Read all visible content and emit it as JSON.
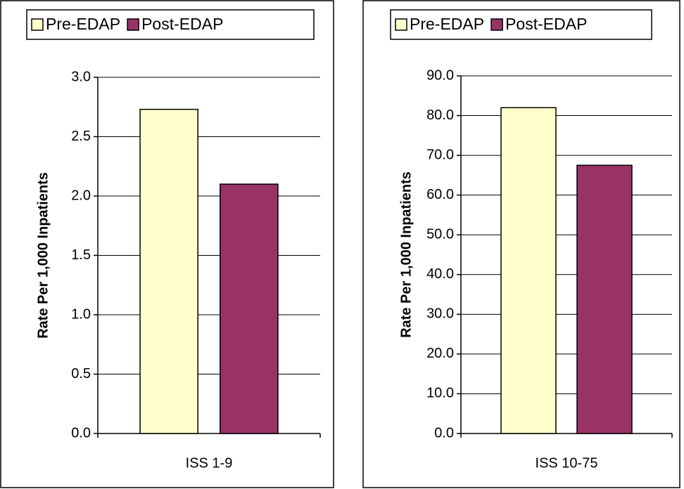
{
  "chart_data": [
    {
      "type": "bar",
      "y_label": "Rate Per 1,000 Inpatients",
      "categories": [
        "ISS 1-9"
      ],
      "series": [
        {
          "name": "Pre-EDAP",
          "color": "#ffffcc",
          "values": [
            2.73
          ]
        },
        {
          "name": "Post-EDAP",
          "color": "#993366",
          "values": [
            2.1
          ]
        }
      ],
      "ylim": [
        0,
        3
      ],
      "yticks": [
        {
          "value": 0,
          "label": "0.0"
        },
        {
          "value": 0.5,
          "label": "0.5"
        },
        {
          "value": 1,
          "label": "1.0"
        },
        {
          "value": 1.5,
          "label": "1.5"
        },
        {
          "value": 2,
          "label": "2.0"
        },
        {
          "value": 2.5,
          "label": "2.5"
        },
        {
          "value": 3,
          "label": "3.0"
        }
      ],
      "grid": true
    },
    {
      "type": "bar",
      "y_label": "Rate Per 1,000 Inpatients",
      "categories": [
        "ISS 10-75"
      ],
      "series": [
        {
          "name": "Pre-EDAP",
          "color": "#ffffcc",
          "values": [
            82.0
          ]
        },
        {
          "name": "Post-EDAP",
          "color": "#993366",
          "values": [
            67.5
          ]
        }
      ],
      "ylim": [
        0,
        90
      ],
      "yticks": [
        {
          "value": 0,
          "label": "0.0"
        },
        {
          "value": 10,
          "label": "10.0"
        },
        {
          "value": 20,
          "label": "20.0"
        },
        {
          "value": 30,
          "label": "30.0"
        },
        {
          "value": 40,
          "label": "40.0"
        },
        {
          "value": 50,
          "label": "50.0"
        },
        {
          "value": 60,
          "label": "60.0"
        },
        {
          "value": 70,
          "label": "70.0"
        },
        {
          "value": 80,
          "label": "80.0"
        },
        {
          "value": 90,
          "label": "90.0"
        }
      ],
      "grid": true
    }
  ]
}
